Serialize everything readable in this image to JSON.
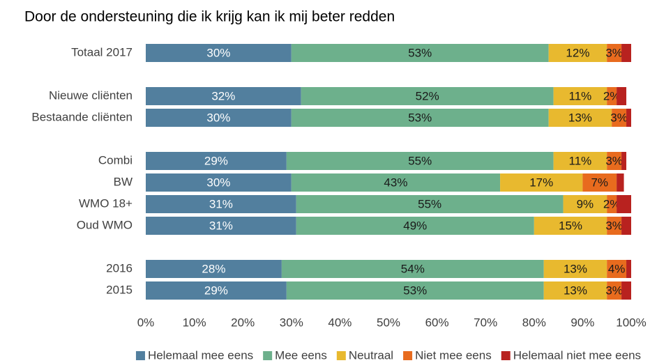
{
  "chart_data": {
    "type": "stacked-bar-horizontal",
    "title": "Door de ondersteuning die ik krijg kan ik mij beter redden",
    "categories": [
      "Totaal 2017",
      null,
      "Nieuwe cliënten",
      "Bestaande cliënten",
      null,
      "Combi",
      "BW",
      "WMO 18+",
      "Oud WMO",
      null,
      "2016",
      "2015"
    ],
    "series": [
      {
        "name": "Helemaal mee eens",
        "color": "#527f9e",
        "label_color": "#ffffff",
        "values": [
          30,
          null,
          32,
          30,
          null,
          29,
          30,
          31,
          31,
          null,
          28,
          29
        ],
        "value_labels": [
          "30%",
          null,
          "32%",
          "30%",
          null,
          "29%",
          "30%",
          "31%",
          "31%",
          null,
          "28%",
          "29%"
        ]
      },
      {
        "name": "Mee eens",
        "color": "#6db08c",
        "label_color": "#1a1a1a",
        "values": [
          53,
          null,
          52,
          53,
          null,
          55,
          43,
          55,
          49,
          null,
          54,
          53
        ],
        "value_labels": [
          "53%",
          null,
          "52%",
          "53%",
          null,
          "55%",
          "43%",
          "55%",
          "49%",
          null,
          "54%",
          "53%"
        ]
      },
      {
        "name": "Neutraal",
        "color": "#e8b92f",
        "label_color": "#1a1a1a",
        "values": [
          12,
          null,
          11,
          13,
          null,
          11,
          17,
          9,
          15,
          null,
          13,
          13
        ],
        "value_labels": [
          "12%",
          null,
          "11%",
          "13%",
          null,
          "11%",
          "17%",
          "9%",
          "15%",
          null,
          "13%",
          "13%"
        ]
      },
      {
        "name": "Niet mee eens",
        "color": "#e86b1e",
        "label_color": "#1a1a1a",
        "values": [
          3,
          null,
          2,
          3,
          null,
          3,
          7,
          2,
          3,
          null,
          4,
          3
        ],
        "value_labels": [
          "3%",
          null,
          "2%",
          "3%",
          null,
          "3%",
          "7%",
          "2%",
          "3%",
          null,
          "4%",
          "3%"
        ]
      },
      {
        "name": "Helemaal niet mee eens",
        "color": "#b8221f",
        "values": [
          2,
          null,
          2,
          1,
          null,
          1,
          1.5,
          3,
          2,
          null,
          1,
          2
        ]
      }
    ],
    "xlim": [
      0,
      100
    ],
    "xticks": [
      {
        "value": 0,
        "label": "0%"
      },
      {
        "value": 10,
        "label": "10%"
      },
      {
        "value": 20,
        "label": "20%"
      },
      {
        "value": 30,
        "label": "30%"
      },
      {
        "value": 40,
        "label": "40%"
      },
      {
        "value": 50,
        "label": "50%"
      },
      {
        "value": 60,
        "label": "60%"
      },
      {
        "value": 70,
        "label": "70%"
      },
      {
        "value": 80,
        "label": "80%"
      },
      {
        "value": 90,
        "label": "90%"
      },
      {
        "value": 100,
        "label": "100%"
      }
    ],
    "grid": false,
    "legend": "bottom"
  }
}
